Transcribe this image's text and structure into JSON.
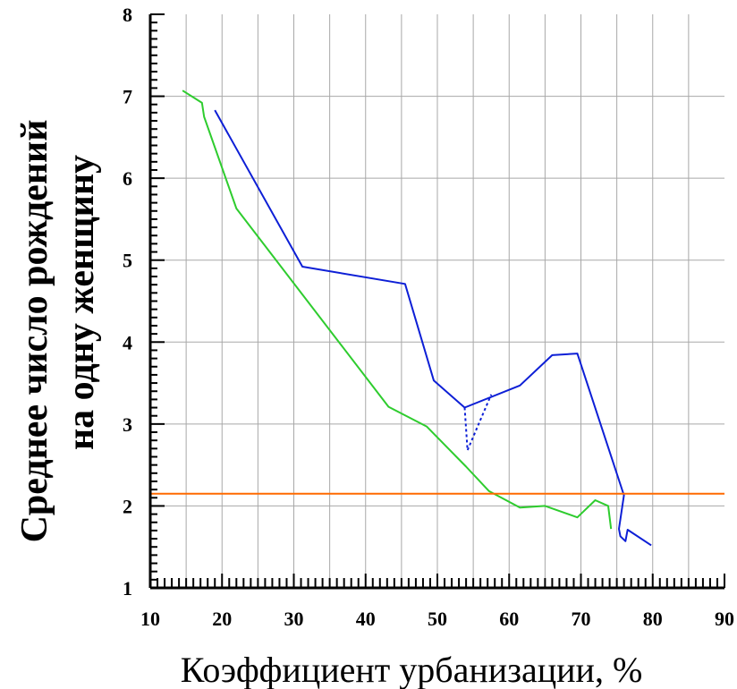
{
  "chart_data": {
    "type": "line",
    "title": "",
    "xlabel": "Коэффициент урбанизации, %",
    "ylabel_line1": "Среднее число рождений",
    "ylabel_line2": "на одну женщину",
    "xlim": [
      10,
      90
    ],
    "ylim": [
      1,
      8
    ],
    "x_ticks": [
      10,
      20,
      30,
      40,
      50,
      60,
      70,
      80,
      90
    ],
    "y_ticks": [
      1,
      2,
      3,
      4,
      5,
      6,
      7,
      8
    ],
    "grid": true,
    "series": [
      {
        "name": "green",
        "color": "#2ecc2e",
        "style": "solid",
        "x": [
          14.5,
          17.2,
          17.5,
          22,
          43.2,
          48.5,
          54,
          57.2,
          61.5,
          65,
          69.5,
          72,
          73.8,
          74.2
        ],
        "y": [
          7.07,
          6.92,
          6.75,
          5.63,
          3.21,
          2.97,
          2.48,
          2.18,
          1.98,
          2.0,
          1.86,
          2.07,
          2.0,
          1.72
        ]
      },
      {
        "name": "blue",
        "color": "#0d1fd6",
        "style": "solid",
        "x": [
          19,
          31.2,
          45.5,
          49.5,
          53.8,
          61.5,
          66,
          69.5,
          76,
          75.3,
          75.5,
          76.2,
          76.5,
          79.8
        ],
        "y": [
          6.83,
          4.92,
          4.71,
          3.53,
          3.2,
          3.47,
          3.84,
          3.86,
          2.13,
          1.72,
          1.63,
          1.57,
          1.71,
          1.52
        ]
      },
      {
        "name": "blue-dotted",
        "color": "#0d1fd6",
        "style": "dotted",
        "x": [
          53.8,
          54.2,
          57.5
        ],
        "y": [
          3.2,
          2.68,
          3.36
        ]
      },
      {
        "name": "replacement-level",
        "color": "#ff6a00",
        "style": "solid",
        "x": [
          10,
          90
        ],
        "y": [
          2.15,
          2.15
        ]
      }
    ]
  }
}
